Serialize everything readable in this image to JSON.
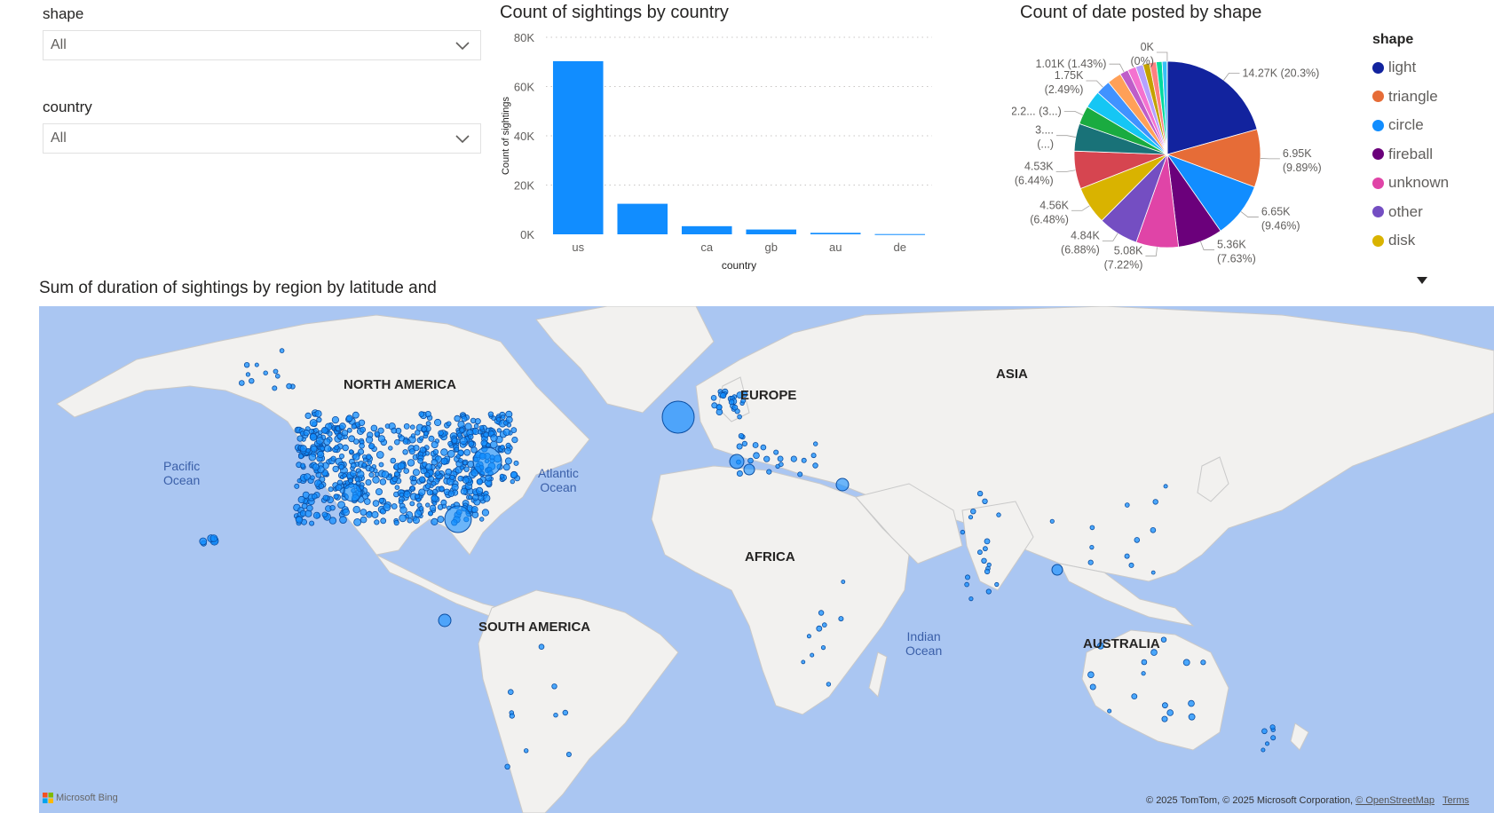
{
  "slicers": {
    "shape": {
      "label": "shape",
      "value": "All"
    },
    "country": {
      "label": "country",
      "value": "All"
    }
  },
  "bar_title": "Count of sightings by country",
  "pie_title": "Count of date posted by shape",
  "map_title": "Sum of duration of sightings by region by latitude and",
  "pie_legend": {
    "title": "shape",
    "items": [
      {
        "label": "light",
        "color": "#12239e"
      },
      {
        "label": "triangle",
        "color": "#e66c37"
      },
      {
        "label": "circle",
        "color": "#118dff"
      },
      {
        "label": "fireball",
        "color": "#6b007b"
      },
      {
        "label": "unknown",
        "color": "#e044a7"
      },
      {
        "label": "other",
        "color": "#744ec2"
      },
      {
        "label": "disk",
        "color": "#d9b300"
      }
    ]
  },
  "chart_data": [
    {
      "type": "bar",
      "title": "Count of sightings by country",
      "xlabel": "country",
      "ylabel": "Count of sightings",
      "categories": [
        "us",
        "",
        "ca",
        "gb",
        "au",
        "de"
      ],
      "values": [
        70300,
        12400,
        3300,
        1950,
        600,
        100
      ],
      "ylim": [
        0,
        80000
      ],
      "yticks": [
        "0K",
        "20K",
        "40K",
        "60K",
        "80K"
      ],
      "color": "#118dff",
      "grid": true
    },
    {
      "type": "pie",
      "title": "Count of date posted by shape",
      "slices": [
        {
          "label": "light",
          "value": 14.27,
          "color": "#12239e",
          "data_label": "14.27K (20.3%)"
        },
        {
          "label": "triangle",
          "value": 6.95,
          "color": "#e66c37",
          "data_label": "6.95K (9.89%)"
        },
        {
          "label": "circle",
          "value": 6.65,
          "color": "#118dff",
          "data_label": "6.65K (9.46%)"
        },
        {
          "label": "fireball",
          "value": 5.36,
          "color": "#6b007b",
          "data_label": "5.36K (7.63%)"
        },
        {
          "label": "unknown",
          "value": 5.08,
          "color": "#e044a7",
          "data_label": "5.08K (7.22%)"
        },
        {
          "label": "other",
          "value": 4.84,
          "color": "#744ec2",
          "data_label": "4.84K (6.88%)"
        },
        {
          "label": "disk",
          "value": 4.56,
          "color": "#d9b300",
          "data_label": "4.56K (6.48%)"
        },
        {
          "label": "",
          "value": 4.53,
          "color": "#d64550",
          "data_label": "4.53K (6.44%)"
        },
        {
          "label": "",
          "value": 3.3,
          "color": "#197278",
          "data_label": "3.... (...)"
        },
        {
          "label": "",
          "value": 2.2,
          "color": "#1aab40",
          "data_label": "2.2... (3...)"
        },
        {
          "label": "",
          "value": 2.1,
          "color": "#15c6f4",
          "data_label": ""
        },
        {
          "label": "",
          "value": 1.75,
          "color": "#4092ff",
          "data_label": "1.75K (2.49%)"
        },
        {
          "label": "",
          "value": 1.7,
          "color": "#ffa058",
          "data_label": ""
        },
        {
          "label": "",
          "value": 1.01,
          "color": "#be5dc9",
          "data_label": "1.01K (1.43%)"
        },
        {
          "label": "",
          "value": 1.0,
          "color": "#f472d0",
          "data_label": ""
        },
        {
          "label": "",
          "value": 0.9,
          "color": "#b5a1ff",
          "data_label": ""
        },
        {
          "label": "",
          "value": 0.8,
          "color": "#c4a200",
          "data_label": ""
        },
        {
          "label": "",
          "value": 0.8,
          "color": "#ff8080",
          "data_label": ""
        },
        {
          "label": "",
          "value": 0.7,
          "color": "#00db9f",
          "data_label": ""
        },
        {
          "label": "",
          "value": 0.6,
          "color": "#36c0f7",
          "data_label": ""
        },
        {
          "label": "",
          "value": 0.02,
          "color": "#99e472",
          "data_label": "0K (0%)"
        }
      ]
    }
  ],
  "map": {
    "labels": {
      "north_america": "NORTH AMERICA",
      "south_america": "SOUTH AMERICA",
      "europe": "EUROPE",
      "asia": "ASIA",
      "africa": "AFRICA",
      "australia": "AUSTRALIA",
      "pacific": [
        "Pacific",
        "Ocean"
      ],
      "atlantic": [
        "Atlantic",
        "Ocean"
      ],
      "indian": [
        "Indian",
        "Ocean"
      ]
    },
    "bing_logo": "Microsoft Bing",
    "attribution": "© 2025 TomTom, © 2025 Microsoft Corporation,",
    "osm_link": "© OpenStreetMap",
    "terms_link": "Terms",
    "bubble_color": "#118dff"
  }
}
